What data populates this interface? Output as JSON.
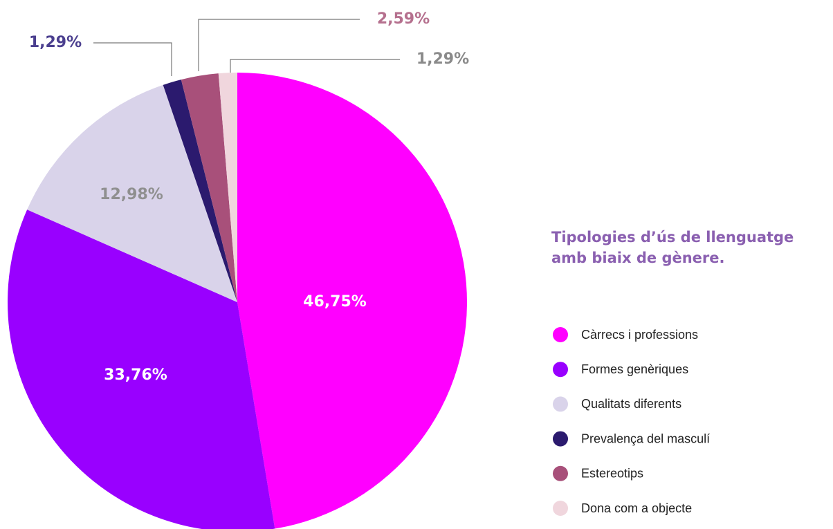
{
  "chart_data": {
    "type": "pie",
    "title": "Tipologies d’ús de llenguatge amb biaix de gènere.",
    "categories": [
      "Càrrecs i professions",
      "Formes genèriques",
      "Qualitats diferents",
      "Prevalença del masculí",
      "Estereotips",
      "Dona com a objecte"
    ],
    "values": [
      46.75,
      33.76,
      12.98,
      1.29,
      2.59,
      1.29
    ],
    "value_labels": [
      "46,75%",
      "33,76%",
      "12,98%",
      "1,29%",
      "2,59%",
      "1,29%"
    ],
    "colors": [
      "#ff00ff",
      "#9900ff",
      "#d9d3ea",
      "#2b1a6e",
      "#a8507a",
      "#f0d6dd"
    ]
  }
}
